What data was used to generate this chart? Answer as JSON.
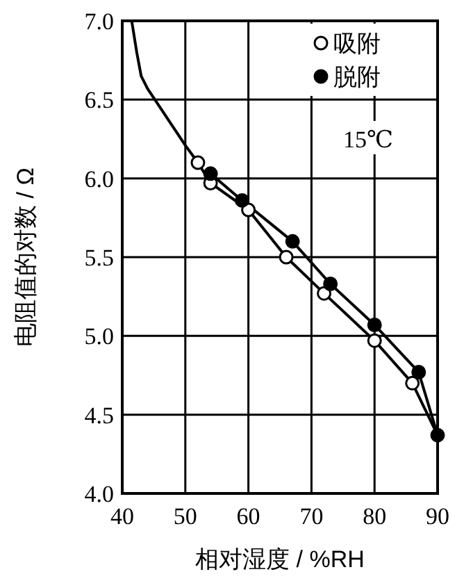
{
  "chart_data": {
    "type": "line",
    "xlabel": "相对湿度 / %RH",
    "ylabel": "电阻值的对数 / Ω",
    "xlim": [
      40,
      90
    ],
    "ylim": [
      4.0,
      7.0
    ],
    "xticks": [
      40,
      50,
      60,
      70,
      80,
      90
    ],
    "yticks": [
      {
        "value": 4.0,
        "label": "4.0"
      },
      {
        "value": 4.5,
        "label": "4.5"
      },
      {
        "value": 5.0,
        "label": "5.0"
      },
      {
        "value": 5.5,
        "label": "5.5"
      },
      {
        "value": 6.0,
        "label": "6.0"
      },
      {
        "value": 6.5,
        "label": "6.5"
      },
      {
        "value": 7.0,
        "label": "7.0"
      }
    ],
    "grid": true,
    "legend": "top right",
    "annotations": [
      "15℃"
    ],
    "series": [
      {
        "color": "#000000",
        "marker": "none",
        "x": [
          41.5,
          42.3,
          43,
          44,
          46,
          48,
          50,
          52,
          54,
          60,
          66,
          72,
          80,
          86,
          90
        ],
        "values": [
          7.0,
          6.8,
          6.65,
          6.57,
          6.45,
          6.33,
          6.21,
          6.1,
          5.97,
          5.8,
          5.5,
          5.27,
          4.97,
          4.7,
          4.37
        ]
      },
      {
        "color": "#000000",
        "marker": "none",
        "x": [
          54,
          59,
          67,
          73,
          80,
          87,
          90
        ],
        "values": [
          6.03,
          5.86,
          5.6,
          5.33,
          5.07,
          4.77,
          4.37
        ]
      },
      {
        "type": "scatter",
        "name": "吸附",
        "color": "#ffffff",
        "marker": "circle",
        "x": [
          52,
          54,
          60,
          66,
          72,
          80,
          86
        ],
        "values": [
          6.1,
          5.97,
          5.8,
          5.5,
          5.27,
          4.97,
          4.7
        ]
      },
      {
        "type": "scatter",
        "name": "脱附",
        "color": "#000000",
        "marker": "circle",
        "x": [
          54,
          59,
          67,
          73,
          80,
          87,
          90
        ],
        "values": [
          6.03,
          5.86,
          5.6,
          5.33,
          5.07,
          4.77,
          4.37
        ]
      }
    ]
  }
}
